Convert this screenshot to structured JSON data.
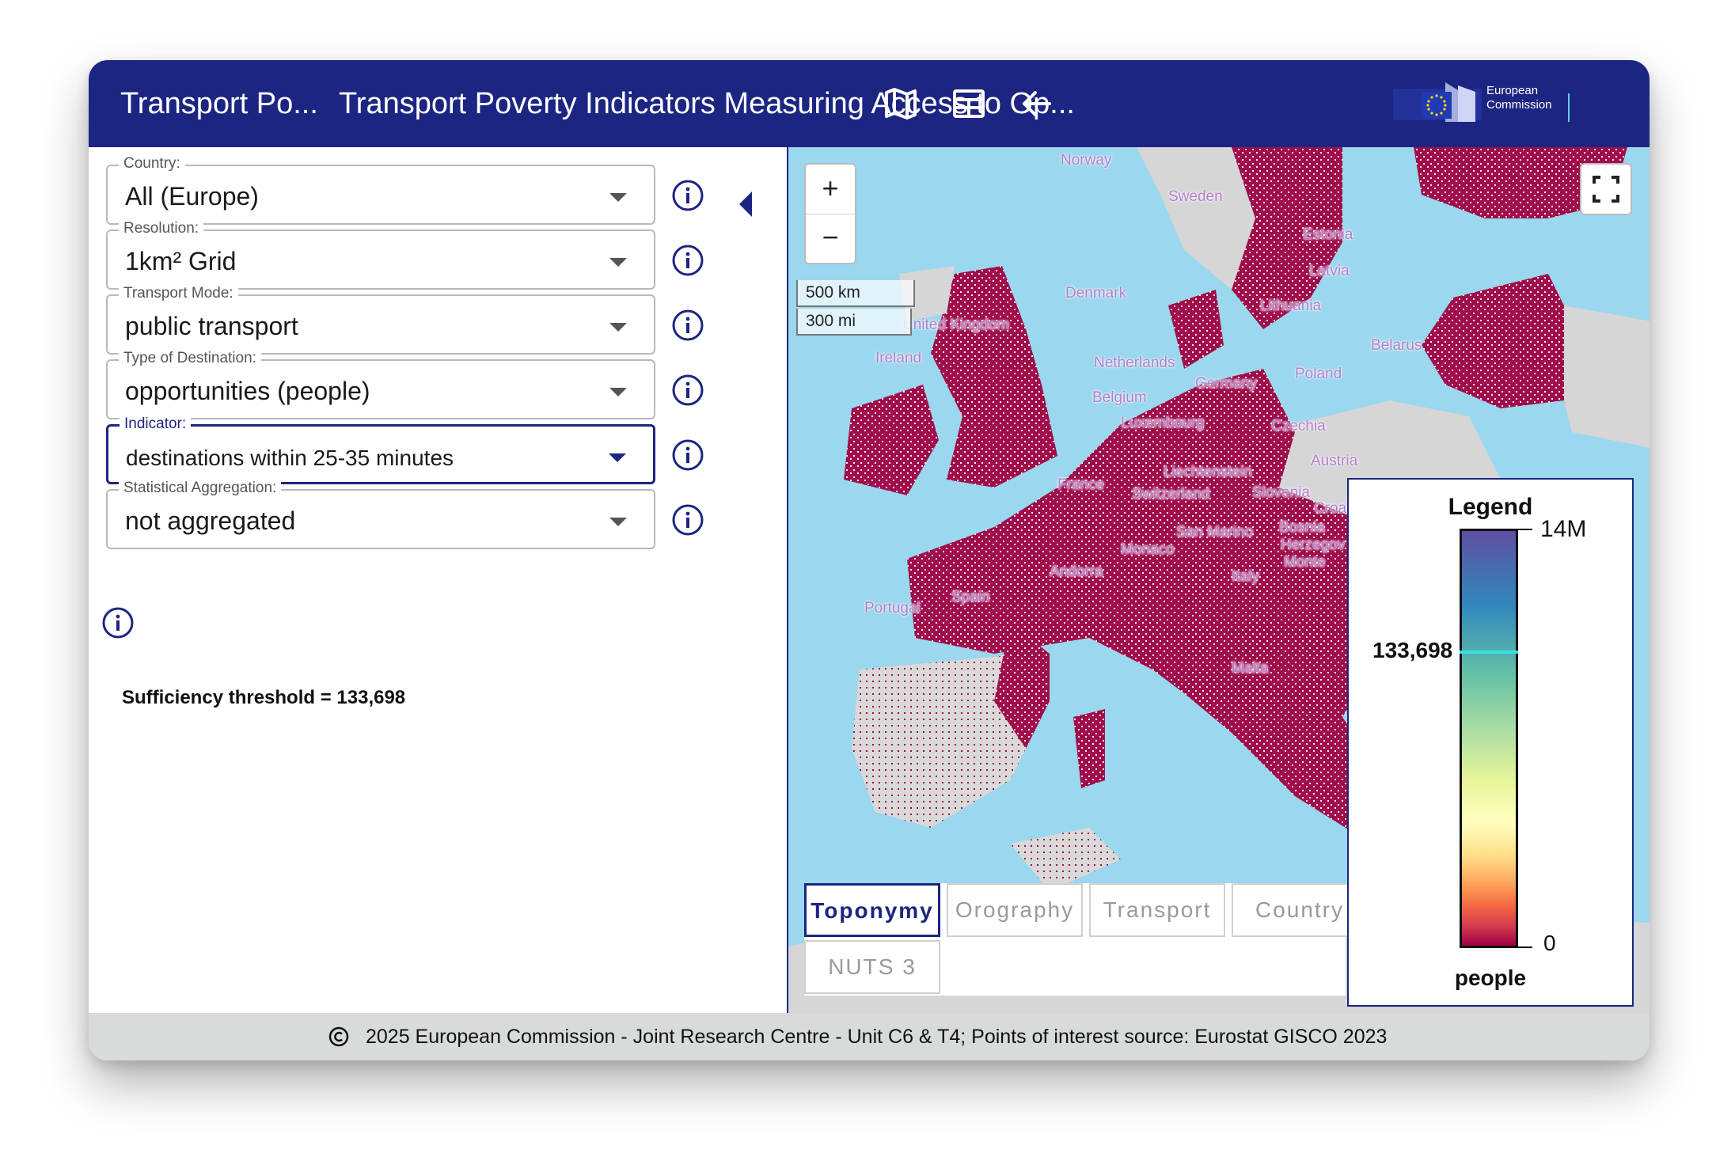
{
  "header": {
    "short_title": "Transport Po...",
    "long_title": "Transport Poverty Indicators Measuring Access to Op...",
    "map_icon": "map-icon",
    "table_icon": "table-icon",
    "back_icon": "arrow-left-icon",
    "logo_text_line1": "European",
    "logo_text_line2": "Commission"
  },
  "filters": [
    {
      "label": "Country:",
      "value": "All (Europe)"
    },
    {
      "label": "Resolution:",
      "value": "1km² Grid"
    },
    {
      "label": "Transport Mode:",
      "value": "public transport"
    },
    {
      "label": "Type of Destination:",
      "value": "opportunities (people)"
    },
    {
      "label": "Indicator:",
      "value": "destinations within 25-35 minutes"
    },
    {
      "label": "Statistical Aggregation:",
      "value": "not aggregated"
    }
  ],
  "threshold_text": "Sufficiency threshold = 133,698",
  "map": {
    "zoom_in": "+",
    "zoom_out": "−",
    "scale_km": "500 km",
    "scale_mi": "300 mi",
    "places": [
      "Norway",
      "Sweden",
      "Estonia",
      "Latvia",
      "Lithuania",
      "Belarus",
      "Denmark",
      "United Kingdom",
      "Ireland",
      "Netherlands",
      "Poland",
      "Germany",
      "Belgium",
      "Luxembourg",
      "Czechia",
      "Austria",
      "Liechtenstein",
      "France",
      "Switzerland",
      "Slovenia",
      "Croatia",
      "San Marino",
      "Bosnia",
      "Herzegov",
      "Monaco",
      "Monte",
      "Andorra",
      "Italy",
      "Portugal",
      "Spain",
      "Malta"
    ],
    "tabs": [
      "Toponymy",
      "Orography",
      "Transport",
      "Country",
      "NUTS 3"
    ],
    "legend": {
      "title": "Legend",
      "max": "14M",
      "threshold": "133,698",
      "min": "0",
      "unit": "people"
    }
  },
  "footer": {
    "text": "2025 European Commission - Joint Research Centre - Unit C6 & T4; Points of interest source: Eurostat GISCO 2023"
  },
  "colors": {
    "brand": "#1c2581",
    "data_fill": "#a10d4a",
    "sea": "#9bd7ef",
    "land_other": "#d6d6d6"
  }
}
